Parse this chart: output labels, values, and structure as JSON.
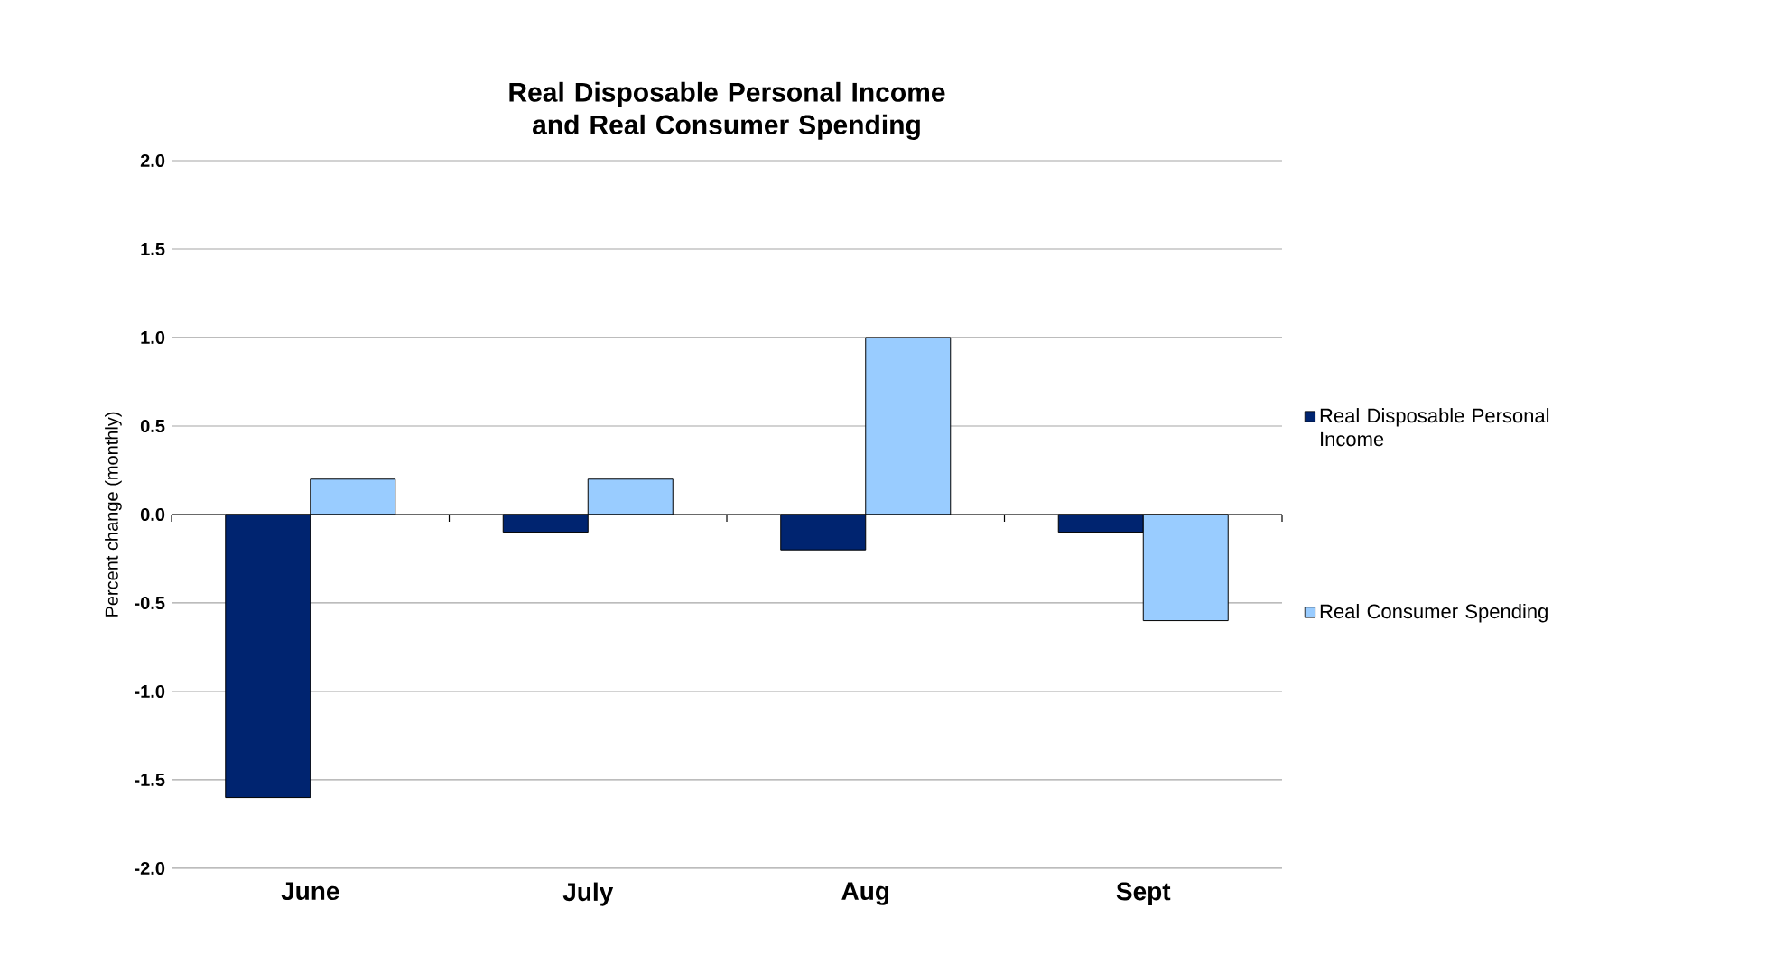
{
  "chart_data": {
    "type": "bar",
    "title": "Real Disposable Personal Income and Real Consumer Spending",
    "ylabel": "Percent change (monthly)",
    "categories": [
      "June",
      "July",
      "Aug",
      "Sept"
    ],
    "series": [
      {
        "name": "Real Disposable Personal Income",
        "color": "#002470",
        "values": [
          -1.6,
          -0.1,
          -0.2,
          -0.1
        ]
      },
      {
        "name": "Real Consumer Spending",
        "color": "#99ccff",
        "values": [
          0.2,
          0.2,
          1.0,
          -0.6
        ]
      }
    ],
    "ylim": [
      -2.0,
      2.0
    ],
    "yticks": [
      {
        "value": -2.0,
        "label": "-2.0"
      },
      {
        "value": -1.5,
        "label": "-1.5"
      },
      {
        "value": -1.0,
        "label": "-1.0"
      },
      {
        "value": -0.5,
        "label": "-0.5"
      },
      {
        "value": 0.0,
        "label": "0.0"
      },
      {
        "value": 0.5,
        "label": "0.5"
      },
      {
        "value": 1.0,
        "label": "1.0"
      },
      {
        "value": 1.5,
        "label": "1.5"
      },
      {
        "value": 2.0,
        "label": "2.0"
      }
    ],
    "grid": "y",
    "legend": "right"
  }
}
